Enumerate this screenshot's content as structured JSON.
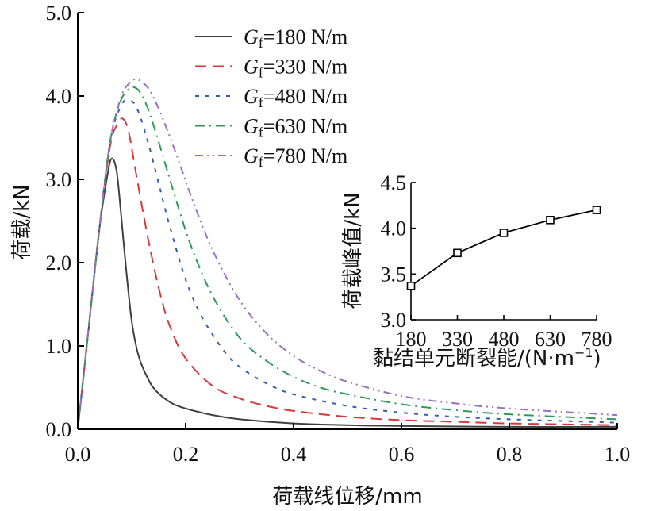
{
  "chart_data": [
    {
      "type": "line",
      "title": "",
      "xlabel": "荷载线位移/mm",
      "ylabel": "荷载/kN",
      "xlim": [
        0.0,
        1.0
      ],
      "ylim": [
        0.0,
        5.0
      ],
      "xticks": [
        "0.0",
        "0.2",
        "0.4",
        "0.6",
        "0.8",
        "1.0"
      ],
      "yticks": [
        "0.0",
        "1.0",
        "2.0",
        "3.0",
        "4.0",
        "5.0"
      ],
      "grid": false,
      "legend_position": "top-center",
      "series": [
        {
          "name": "=180 N/m",
          "symbol": "G",
          "subscript": "f",
          "color": "#404040",
          "dash": "solid",
          "x": [
            0.0,
            0.02,
            0.04,
            0.055,
            0.063,
            0.072,
            0.08,
            0.09,
            0.1,
            0.11,
            0.12,
            0.14,
            0.17,
            0.2,
            0.25,
            0.3,
            0.4,
            0.5,
            0.6,
            0.8,
            1.0
          ],
          "y": [
            0.0,
            1.2,
            2.4,
            3.05,
            3.25,
            3.1,
            2.6,
            1.9,
            1.3,
            0.95,
            0.75,
            0.5,
            0.33,
            0.25,
            0.17,
            0.12,
            0.07,
            0.05,
            0.04,
            0.03,
            0.03
          ]
        },
        {
          "name": "=330 N/m",
          "symbol": "G",
          "subscript": "f",
          "color": "#d9383a",
          "dash": "long-dash",
          "x": [
            0.0,
            0.02,
            0.04,
            0.06,
            0.075,
            0.085,
            0.095,
            0.11,
            0.13,
            0.15,
            0.17,
            0.2,
            0.25,
            0.3,
            0.35,
            0.4,
            0.5,
            0.6,
            0.7,
            0.8,
            1.0
          ],
          "y": [
            0.0,
            1.2,
            2.4,
            3.4,
            3.68,
            3.72,
            3.55,
            3.0,
            2.3,
            1.7,
            1.25,
            0.85,
            0.52,
            0.37,
            0.28,
            0.22,
            0.15,
            0.11,
            0.09,
            0.07,
            0.05
          ]
        },
        {
          "name": "=480 N/m",
          "symbol": "G",
          "subscript": "f",
          "color": "#2e5fb0",
          "dash": "short-dash",
          "x": [
            0.0,
            0.02,
            0.04,
            0.06,
            0.08,
            0.095,
            0.11,
            0.13,
            0.15,
            0.17,
            0.2,
            0.23,
            0.27,
            0.3,
            0.35,
            0.4,
            0.5,
            0.6,
            0.7,
            0.8,
            1.0
          ],
          "y": [
            0.0,
            1.2,
            2.4,
            3.45,
            3.88,
            3.95,
            3.85,
            3.45,
            2.95,
            2.45,
            1.8,
            1.35,
            0.95,
            0.75,
            0.55,
            0.42,
            0.28,
            0.2,
            0.15,
            0.12,
            0.08
          ]
        },
        {
          "name": "=630 N/m",
          "symbol": "G",
          "subscript": "f",
          "color": "#2f9a5a",
          "dash": "dash-dot",
          "x": [
            0.0,
            0.02,
            0.04,
            0.06,
            0.08,
            0.1,
            0.115,
            0.13,
            0.15,
            0.18,
            0.21,
            0.25,
            0.3,
            0.35,
            0.4,
            0.45,
            0.5,
            0.6,
            0.7,
            0.8,
            1.0
          ],
          "y": [
            0.0,
            1.2,
            2.4,
            3.45,
            3.95,
            4.1,
            4.05,
            3.85,
            3.45,
            2.8,
            2.2,
            1.6,
            1.1,
            0.82,
            0.63,
            0.5,
            0.42,
            0.3,
            0.23,
            0.18,
            0.12
          ]
        },
        {
          "name": "=780 N/m",
          "symbol": "G",
          "subscript": "f",
          "color": "#9b6fc0",
          "dash": "dash-dot-dot",
          "x": [
            0.0,
            0.02,
            0.04,
            0.06,
            0.08,
            0.095,
            0.11,
            0.13,
            0.15,
            0.18,
            0.21,
            0.25,
            0.3,
            0.35,
            0.4,
            0.45,
            0.5,
            0.6,
            0.7,
            0.8,
            1.0
          ],
          "y": [
            0.0,
            1.2,
            2.4,
            3.45,
            3.98,
            4.15,
            4.2,
            4.1,
            3.85,
            3.35,
            2.8,
            2.15,
            1.55,
            1.15,
            0.88,
            0.7,
            0.57,
            0.4,
            0.31,
            0.25,
            0.17
          ]
        }
      ]
    },
    {
      "type": "line",
      "title": "",
      "xlabel": "黏结单元断裂能/(N·m",
      "xlabel_sup": "−1",
      "xlabel_end": ")",
      "ylabel": "荷载峰值/kN",
      "categories": [
        "180",
        "330",
        "480",
        "630",
        "780"
      ],
      "ylim": [
        3.0,
        4.5
      ],
      "yticks": [
        "3.0",
        "3.5",
        "4.0",
        "4.5"
      ],
      "grid": false,
      "series": [
        {
          "name": "peak",
          "color": "#000000",
          "marker": "square",
          "values": [
            3.37,
            3.73,
            3.95,
            4.09,
            4.2
          ]
        }
      ]
    }
  ]
}
